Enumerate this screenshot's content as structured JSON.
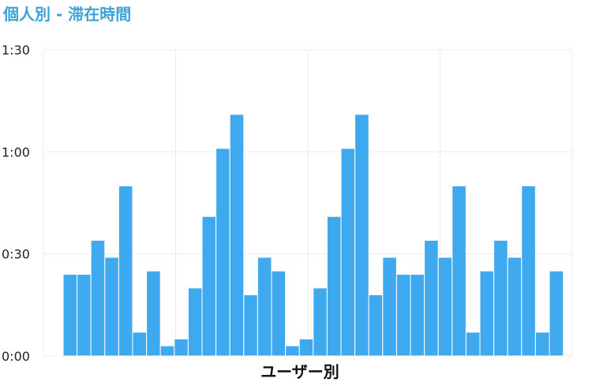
{
  "chart_data": {
    "type": "bar",
    "title": "個人別 - 滞在時間",
    "xlabel": "ユーザー別",
    "ylabel": "",
    "y_unit": "minutes",
    "ylim": [
      0,
      90
    ],
    "y_ticks": [
      {
        "value": 0,
        "label": "0:00"
      },
      {
        "value": 30,
        "label": "0:30"
      },
      {
        "value": 60,
        "label": "1:00"
      },
      {
        "value": 90,
        "label": "1:30"
      }
    ],
    "grid": true,
    "values": [
      24,
      24,
      34,
      29,
      50,
      7,
      25,
      3,
      5,
      20,
      41,
      61,
      71,
      18,
      29,
      25,
      3,
      5,
      20,
      41,
      61,
      71,
      18,
      29,
      24,
      24,
      34,
      29,
      50,
      7,
      25,
      34,
      29,
      50,
      7,
      25
    ]
  }
}
